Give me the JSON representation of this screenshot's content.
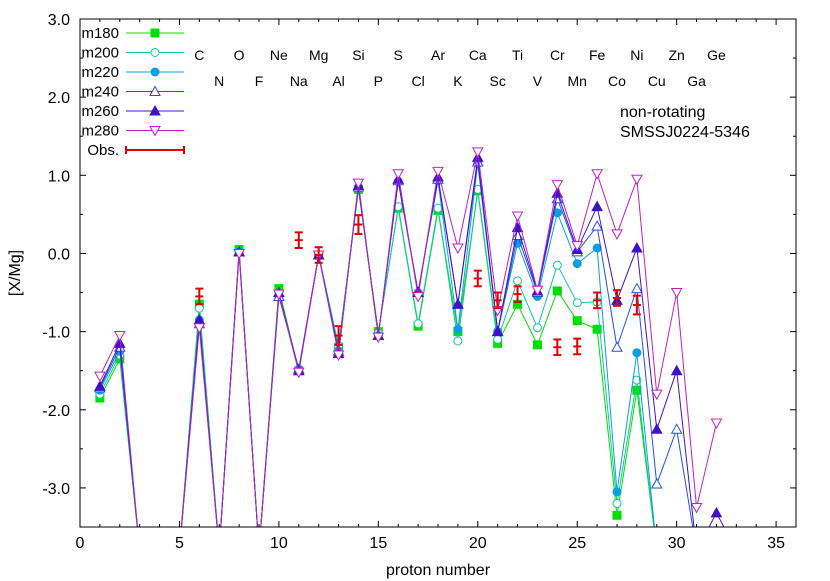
{
  "chart_data": {
    "type": "line",
    "xlabel": "proton number",
    "ylabel": "[X/Mg]",
    "xlim": [
      0,
      36
    ],
    "ylim": [
      -3.5,
      3.0
    ],
    "xticks": [
      0,
      5,
      10,
      15,
      20,
      25,
      30,
      35
    ],
    "xtick_labels": [
      "0",
      "5",
      "10",
      "15",
      "20",
      "25",
      "30",
      "35"
    ],
    "yticks": [
      -3.0,
      -2.0,
      -1.0,
      0.0,
      1.0,
      2.0,
      3.0
    ],
    "ytick_labels": [
      "-3.0",
      "-2.0",
      "-1.0",
      "0.0",
      "1.0",
      "2.0",
      "3.0"
    ],
    "legend_position": "top-left",
    "annotations": [
      "non-rotating",
      "SMSSJ0224-5346"
    ],
    "elements_row1": [
      {
        "symbol": "C",
        "z": 6
      },
      {
        "symbol": "O",
        "z": 8
      },
      {
        "symbol": "Ne",
        "z": 10
      },
      {
        "symbol": "Mg",
        "z": 12
      },
      {
        "symbol": "Si",
        "z": 14
      },
      {
        "symbol": "S",
        "z": 16
      },
      {
        "symbol": "Ar",
        "z": 18
      },
      {
        "symbol": "Ca",
        "z": 20
      },
      {
        "symbol": "Ti",
        "z": 22
      },
      {
        "symbol": "Cr",
        "z": 24
      },
      {
        "symbol": "Fe",
        "z": 26
      },
      {
        "symbol": "Ni",
        "z": 28
      },
      {
        "symbol": "Zn",
        "z": 30
      },
      {
        "symbol": "Ge",
        "z": 32
      }
    ],
    "elements_row2": [
      {
        "symbol": "N",
        "z": 7
      },
      {
        "symbol": "F",
        "z": 9
      },
      {
        "symbol": "Na",
        "z": 11
      },
      {
        "symbol": "Al",
        "z": 13
      },
      {
        "symbol": "P",
        "z": 15
      },
      {
        "symbol": "Cl",
        "z": 17
      },
      {
        "symbol": "K",
        "z": 19
      },
      {
        "symbol": "Sc",
        "z": 21
      },
      {
        "symbol": "V",
        "z": 23
      },
      {
        "symbol": "Mn",
        "z": 25
      },
      {
        "symbol": "Co",
        "z": 27
      },
      {
        "symbol": "Cu",
        "z": 29
      },
      {
        "symbol": "Ga",
        "z": 31
      }
    ],
    "series": [
      {
        "name": "m180",
        "color": "#00e000",
        "marker": "square-filled",
        "x": [
          1,
          2,
          3,
          5,
          6,
          7,
          8,
          9,
          10,
          11,
          12,
          13,
          14,
          15,
          16,
          17,
          18,
          19,
          20,
          21,
          22,
          23,
          24,
          25,
          26,
          27,
          28,
          29
        ],
        "y": [
          -1.85,
          -1.35,
          -3.8,
          -3.8,
          -0.65,
          -3.8,
          0.05,
          -3.8,
          -0.45,
          -1.5,
          -0.02,
          -1.2,
          0.82,
          -1.0,
          0.58,
          -0.93,
          0.55,
          -1.0,
          0.8,
          -1.15,
          -0.65,
          -1.17,
          -0.48,
          -0.86,
          -0.97,
          -3.35,
          -1.75,
          -3.8
        ]
      },
      {
        "name": "m200",
        "color": "#10c8a0",
        "marker": "circle-open",
        "x": [
          1,
          2,
          3,
          5,
          6,
          7,
          8,
          9,
          10,
          11,
          12,
          13,
          14,
          15,
          16,
          17,
          18,
          19,
          20,
          21,
          22,
          23,
          24,
          25,
          26,
          27,
          28,
          29
        ],
        "y": [
          -1.8,
          -1.3,
          -3.8,
          -3.8,
          -0.7,
          -3.8,
          0.03,
          -3.8,
          -0.5,
          -1.5,
          -0.02,
          -1.18,
          0.84,
          -1.02,
          0.6,
          -0.9,
          0.58,
          -1.12,
          0.82,
          -1.1,
          -0.35,
          -0.95,
          -0.15,
          -0.63,
          -0.62,
          -3.2,
          -1.62,
          -3.8
        ]
      },
      {
        "name": "m220",
        "color": "#0aa0e0",
        "marker": "circle-filled",
        "x": [
          1,
          2,
          3,
          5,
          6,
          7,
          8,
          9,
          10,
          11,
          12,
          13,
          14,
          15,
          16,
          17,
          18,
          19,
          20,
          21,
          22,
          23,
          24,
          25,
          26,
          27,
          28,
          29
        ],
        "y": [
          -1.75,
          -1.25,
          -3.8,
          -3.8,
          -0.85,
          -3.8,
          0.02,
          -3.8,
          -0.55,
          -1.48,
          -0.02,
          -1.25,
          0.85,
          -1.05,
          0.92,
          -0.5,
          0.93,
          -0.97,
          1.15,
          -1.0,
          0.13,
          -0.55,
          0.52,
          -0.13,
          0.07,
          -3.05,
          -1.27,
          -3.8
        ]
      },
      {
        "name": "m240",
        "color": "#2050e0",
        "marker": "triangle-open",
        "x": [
          1,
          2,
          3,
          5,
          6,
          7,
          8,
          9,
          10,
          11,
          12,
          13,
          14,
          15,
          16,
          17,
          18,
          19,
          20,
          21,
          22,
          23,
          24,
          25,
          26,
          27,
          28,
          29,
          30,
          31
        ],
        "y": [
          -1.72,
          -1.2,
          -3.8,
          -3.8,
          -0.9,
          -3.8,
          0.02,
          -3.8,
          -0.55,
          -1.48,
          -0.02,
          -1.25,
          0.85,
          -1.05,
          0.93,
          -0.5,
          0.95,
          -0.65,
          1.17,
          -1.0,
          0.23,
          -0.5,
          0.7,
          0.02,
          0.35,
          -1.2,
          -0.45,
          -2.95,
          -2.25,
          -3.8
        ]
      },
      {
        "name": "m260",
        "color": "#4010c8",
        "marker": "triangle-filled",
        "x": [
          1,
          2,
          3,
          5,
          6,
          7,
          8,
          9,
          10,
          11,
          12,
          13,
          14,
          15,
          16,
          17,
          18,
          19,
          20,
          21,
          22,
          23,
          24,
          25,
          26,
          27,
          28,
          29,
          30,
          31,
          32,
          33
        ],
        "y": [
          -1.7,
          -1.15,
          -3.8,
          -3.8,
          -0.85,
          -3.8,
          0.02,
          -3.8,
          -0.5,
          -1.5,
          -0.02,
          -1.28,
          0.87,
          -1.05,
          0.95,
          -0.5,
          0.98,
          -0.65,
          1.23,
          -1.0,
          0.33,
          -0.48,
          0.77,
          0.05,
          0.6,
          -0.6,
          0.07,
          -2.25,
          -1.5,
          -3.8,
          -3.32,
          -3.8
        ]
      },
      {
        "name": "m280",
        "color": "#c020c0",
        "marker": "triangle-down-open",
        "x": [
          1,
          2,
          3,
          5,
          6,
          7,
          8,
          9,
          10,
          11,
          12,
          13,
          14,
          15,
          16,
          17,
          18,
          19,
          20,
          21,
          22,
          23,
          24,
          25,
          26,
          27,
          28,
          29,
          30,
          31,
          32
        ],
        "y": [
          -1.57,
          -1.05,
          -3.8,
          -3.8,
          -0.95,
          -3.8,
          0.0,
          -3.8,
          -0.52,
          -1.52,
          -0.02,
          -1.3,
          0.9,
          -1.07,
          1.02,
          -0.55,
          1.05,
          0.07,
          1.3,
          -0.73,
          0.48,
          -0.47,
          0.88,
          0.1,
          1.02,
          0.25,
          0.95,
          -1.8,
          -0.5,
          -3.25,
          -2.17
        ]
      }
    ],
    "observations": {
      "name": "Obs.",
      "color": "#e00000",
      "x": [
        6,
        11,
        12,
        13,
        14,
        20,
        21,
        22,
        24,
        25,
        26,
        27,
        28
      ],
      "y": [
        -0.55,
        0.17,
        -0.02,
        -1.05,
        0.37,
        -0.32,
        -0.6,
        -0.52,
        -1.2,
        -1.19,
        -0.6,
        -0.57,
        -0.66
      ],
      "err": [
        0.1,
        0.1,
        0.1,
        0.12,
        0.12,
        0.1,
        0.1,
        0.1,
        0.1,
        0.1,
        0.1,
        0.1,
        0.12
      ]
    }
  }
}
